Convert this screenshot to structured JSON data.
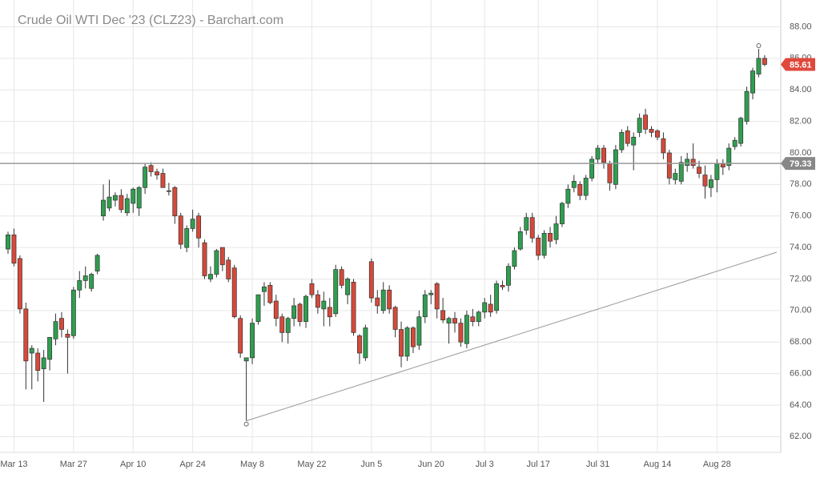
{
  "chart_data": {
    "type": "candlestick",
    "title": "Crude Oil WTI Dec '23 (CLZ23) - Barchart.com",
    "categories": [
      null,
      "Mar 13",
      null,
      null,
      null,
      null,
      null,
      null,
      null,
      null,
      null,
      "Mar 27",
      null,
      null,
      null,
      null,
      null,
      null,
      null,
      null,
      null,
      "Apr 10",
      null,
      null,
      null,
      null,
      null,
      null,
      null,
      null,
      null,
      "Apr 24",
      null,
      null,
      null,
      null,
      null,
      null,
      null,
      null,
      null,
      "May 8",
      null,
      null,
      null,
      null,
      null,
      null,
      null,
      null,
      null,
      "May 22",
      null,
      null,
      null,
      null,
      null,
      null,
      null,
      null,
      null,
      "Jun 5",
      null,
      null,
      null,
      null,
      null,
      null,
      null,
      null,
      null,
      "Jun 20",
      null,
      null,
      null,
      null,
      null,
      null,
      null,
      null,
      "Jul 3",
      null,
      null,
      null,
      null,
      null,
      null,
      null,
      null,
      "Jul 17",
      null,
      null,
      null,
      null,
      null,
      null,
      null,
      null,
      null,
      "Jul 31",
      null,
      null,
      null,
      null,
      null,
      null,
      null,
      null,
      null,
      "Aug 14",
      null,
      null,
      null,
      null,
      null,
      null,
      null,
      null,
      null,
      "Aug 28",
      null,
      null,
      null,
      null,
      null,
      null,
      null,
      null
    ],
    "open": [
      73.9,
      74.8,
      73.3,
      70.1,
      67.3,
      67.3,
      66.3,
      66.9,
      68.2,
      69.5,
      68.5,
      68.4,
      71.3,
      71.9,
      71.4,
      72.5,
      76.0,
      76.5,
      77.0,
      77.3,
      76.2,
      76.8,
      76.5,
      77.8,
      79.2,
      78.8,
      78.7,
      77.6,
      77.8,
      76.0,
      74.0,
      75.2,
      76.0,
      74.3,
      72.0,
      72.3,
      74.0,
      73.2,
      72.7,
      69.5,
      66.8,
      67.0,
      69.3,
      71.2,
      71.6,
      70.6,
      69.6,
      68.6,
      69.5,
      70.4,
      69.3,
      71.7,
      71.0,
      70.1,
      70.2,
      69.8,
      72.6,
      71.0,
      71.8,
      68.4,
      67.0,
      73.1,
      70.8,
      70.0,
      71.3,
      70.2,
      68.8,
      67.1,
      68.9,
      67.8,
      69.6,
      71.0,
      71.7,
      70.0,
      69.2,
      69.5,
      69.2,
      67.9,
      69.6,
      69.3,
      69.9,
      70.4,
      70.0,
      71.6,
      71.6,
      72.8,
      73.9,
      75.1,
      75.9,
      74.6,
      73.5,
      74.9,
      74.5,
      75.5,
      76.8,
      77.8,
      78.0,
      77.3,
      78.4,
      79.6,
      80.3,
      79.3,
      78.0,
      80.2,
      81.4,
      80.5,
      81.3,
      82.4,
      81.5,
      81.4,
      80.9,
      80.0,
      78.3,
      78.2,
      79.2,
      79.6,
      79.1,
      78.6,
      77.8,
      78.3,
      79.3,
      79.2,
      80.4,
      80.6,
      82.0,
      83.8,
      85.0,
      86.0
    ],
    "high": [
      75.0,
      75.2,
      73.5,
      70.5,
      67.8,
      67.6,
      67.5,
      68.2,
      69.8,
      69.9,
      68.8,
      71.5,
      72.5,
      72.8,
      72.4,
      73.6,
      78.0,
      78.3,
      77.5,
      77.7,
      77.4,
      77.8,
      77.9,
      79.3,
      79.4,
      79.0,
      79.0,
      78.1,
      77.9,
      76.2,
      75.4,
      76.4,
      76.2,
      74.5,
      72.8,
      73.9,
      74.0,
      73.4,
      72.9,
      69.7,
      67.0,
      69.5,
      71.0,
      71.8,
      71.8,
      71.0,
      69.8,
      69.6,
      70.8,
      70.5,
      71.0,
      72.0,
      71.3,
      71.2,
      70.8,
      72.9,
      72.8,
      72.1,
      72.0,
      68.5,
      69.1,
      73.3,
      71.3,
      71.8,
      71.6,
      70.3,
      69.3,
      69.0,
      69.0,
      70.0,
      71.3,
      71.3,
      71.8,
      70.8,
      69.6,
      69.9,
      69.5,
      70.0,
      70.1,
      70.0,
      70.8,
      71.0,
      71.9,
      71.9,
      73.0,
      74.0,
      75.3,
      76.2,
      76.2,
      74.8,
      75.1,
      75.3,
      76.0,
      76.9,
      78.0,
      78.6,
      78.2,
      78.6,
      79.8,
      80.5,
      80.5,
      79.5,
      80.5,
      81.5,
      81.7,
      81.3,
      82.5,
      82.8,
      81.7,
      81.5,
      81.3,
      80.2,
      79.0,
      79.8,
      80.0,
      80.6,
      79.5,
      79.2,
      78.6,
      79.6,
      79.6,
      80.6,
      81.0,
      82.3,
      84.2,
      85.4,
      86.6,
      86.2
    ],
    "low": [
      73.6,
      72.8,
      69.8,
      65.0,
      65.0,
      65.5,
      64.2,
      66.2,
      67.8,
      68.3,
      66.0,
      68.2,
      70.8,
      71.4,
      71.2,
      72.3,
      75.7,
      76.3,
      76.6,
      76.2,
      76.0,
      76.2,
      76.0,
      77.4,
      78.5,
      78.3,
      77.8,
      77.3,
      75.5,
      73.9,
      73.7,
      75.0,
      74.0,
      72.0,
      71.8,
      72.1,
      72.5,
      71.8,
      69.5,
      67.0,
      63.0,
      66.6,
      69.1,
      70.3,
      70.4,
      69.0,
      68.0,
      67.9,
      69.0,
      69.0,
      68.9,
      70.8,
      69.8,
      69.0,
      69.0,
      69.6,
      71.4,
      70.4,
      68.4,
      66.6,
      66.8,
      70.5,
      69.8,
      69.8,
      69.8,
      68.3,
      66.4,
      66.8,
      67.3,
      67.5,
      69.2,
      70.4,
      69.5,
      69.2,
      67.9,
      68.6,
      67.7,
      67.6,
      69.0,
      69.0,
      69.5,
      69.6,
      69.8,
      71.3,
      71.2,
      72.6,
      73.8,
      74.8,
      74.3,
      73.2,
      73.3,
      74.0,
      74.2,
      75.3,
      76.5,
      77.5,
      77.0,
      77.0,
      78.2,
      79.3,
      79.0,
      77.6,
      77.7,
      80.0,
      80.4,
      78.9,
      81.0,
      81.2,
      81.0,
      80.8,
      79.6,
      78.0,
      78.0,
      78.0,
      78.8,
      79.0,
      78.4,
      77.1,
      77.2,
      77.5,
      78.6,
      78.9,
      80.2,
      80.4,
      81.8,
      83.4,
      84.8,
      85.5
    ],
    "close": [
      74.8,
      73.0,
      70.1,
      66.8,
      67.6,
      66.2,
      67.0,
      68.3,
      69.3,
      68.8,
      68.3,
      71.3,
      71.9,
      72.2,
      72.3,
      73.5,
      77.0,
      77.2,
      77.3,
      76.4,
      77.1,
      77.7,
      77.8,
      79.1,
      78.8,
      78.6,
      77.8,
      77.6,
      76.0,
      74.2,
      75.2,
      75.8,
      74.6,
      72.2,
      72.3,
      73.8,
      72.9,
      72.0,
      69.6,
      67.3,
      67.0,
      69.2,
      71.0,
      71.5,
      70.5,
      69.5,
      68.6,
      69.5,
      70.3,
      69.3,
      70.9,
      71.0,
      70.2,
      70.6,
      69.6,
      72.6,
      71.6,
      72.0,
      68.6,
      67.3,
      68.9,
      70.8,
      70.3,
      71.3,
      70.1,
      68.8,
      67.1,
      68.9,
      67.7,
      69.6,
      71.0,
      71.1,
      70.1,
      69.4,
      69.5,
      69.2,
      68.0,
      69.7,
      69.3,
      69.9,
      70.5,
      69.9,
      71.7,
      71.5,
      72.8,
      73.8,
      75.0,
      75.9,
      74.6,
      73.5,
      74.9,
      74.4,
      75.5,
      76.8,
      77.7,
      78.2,
      77.3,
      78.4,
      79.6,
      80.3,
      79.4,
      78.1,
      80.2,
      81.3,
      80.6,
      81.0,
      82.2,
      81.5,
      81.3,
      81.0,
      80.0,
      78.4,
      78.7,
      79.4,
      79.6,
      79.2,
      78.7,
      77.9,
      78.3,
      79.3,
      79.1,
      80.3,
      80.8,
      82.2,
      83.9,
      85.2,
      86.0,
      85.61
    ],
    "up_color": "#2f9e4f",
    "down_color": "#d6493a",
    "reference_line": 79.33,
    "trend_line": [
      63.0,
      73.7
    ],
    "ylim": [
      61,
      89.7
    ],
    "yticks": [
      {
        "value": 62,
        "label": "62.00"
      },
      {
        "value": 64,
        "label": "64.00"
      },
      {
        "value": 66,
        "label": "66.00"
      },
      {
        "value": 68,
        "label": "68.00"
      },
      {
        "value": 70,
        "label": "70.00"
      },
      {
        "value": 72,
        "label": "72.00"
      },
      {
        "value": 74,
        "label": "74.00"
      },
      {
        "value": 76,
        "label": "76.00"
      },
      {
        "value": 78,
        "label": "78.00"
      },
      {
        "value": 80,
        "label": "80.00"
      },
      {
        "value": 82,
        "label": "82.00"
      },
      {
        "value": 84,
        "label": "84.00"
      },
      {
        "value": 86,
        "label": "86.00"
      },
      {
        "value": 88,
        "label": "88.00"
      }
    ],
    "grid": true
  }
}
